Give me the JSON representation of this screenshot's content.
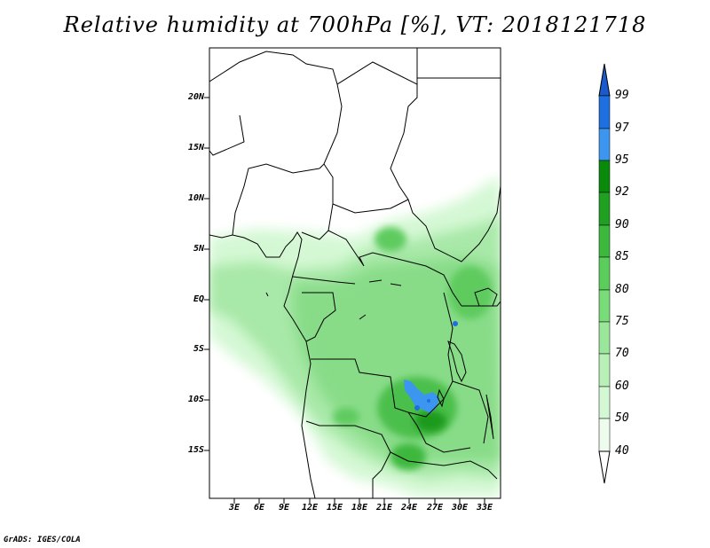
{
  "title": "Relative humidity at 700hPa [%], VT: 2018121718",
  "credit": "GrADS: IGES/COLA",
  "lat_labels": [
    "20N",
    "15N",
    "10N",
    "5N",
    "EQ",
    "5S",
    "10S",
    "15S"
  ],
  "lon_labels": [
    "3E",
    "6E",
    "9E",
    "12E",
    "15E",
    "18E",
    "21E",
    "24E",
    "27E",
    "30E",
    "33E"
  ],
  "colorbar": {
    "labels": [
      "99",
      "97",
      "95",
      "92",
      "90",
      "85",
      "80",
      "75",
      "70",
      "60",
      "50",
      "40"
    ],
    "colors": [
      "#1a5acc",
      "#1e6fe0",
      "#3c96f0",
      "#0a8a0a",
      "#20a020",
      "#3cb83c",
      "#5acd5a",
      "#78dc78",
      "#9ae69a",
      "#b8f0b8",
      "#d4f8d4",
      "#eefcee",
      "#ffffff"
    ]
  },
  "colors": {
    "green_light": "#d4f8d4",
    "green_mid": "#8ee08e",
    "green_dark": "#2ea82e",
    "blue": "#2f7fe8"
  }
}
